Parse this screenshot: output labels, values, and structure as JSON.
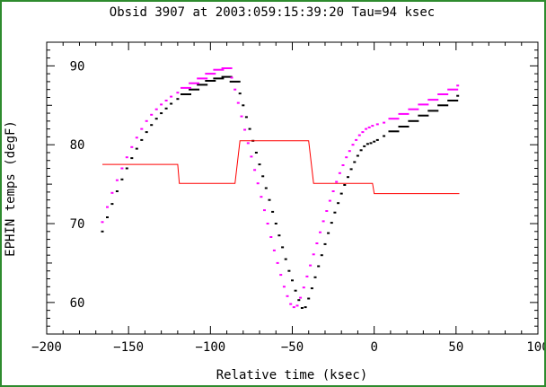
{
  "chart_data": {
    "type": "scatter",
    "title": "Obsid 3907 at 2003:059:15:39:20   Tau=94 ksec",
    "xlabel": "Relative time (ksec)",
    "ylabel": "EPHIN temps (degF)",
    "xlim": [
      -200,
      100
    ],
    "ylim": [
      56,
      93
    ],
    "xticks": [
      -200,
      -150,
      -100,
      -50,
      0,
      50,
      100
    ],
    "yticks": [
      60,
      70,
      80,
      90
    ],
    "xtick_labels": [
      "−200",
      "−150",
      "−100",
      "−50",
      "0",
      "50",
      "100"
    ],
    "ytick_labels": [
      "60",
      "70",
      "80",
      "90"
    ],
    "grid": false,
    "colors": {
      "frame": "#2e8b2e",
      "black_series": "#000000",
      "magenta_series": "#ff00ff",
      "red_series": "#ff0000"
    },
    "series": [
      {
        "color": "#000000",
        "style": "markers",
        "x": [
          -166,
          -163,
          -160,
          -157,
          -154,
          -151,
          -148,
          -145,
          -142,
          -139,
          -136,
          -133,
          -130,
          -127,
          -124,
          -120,
          -115,
          -110,
          -105,
          -100,
          -95,
          -90,
          -85,
          -82,
          -80,
          -78,
          -76,
          -74,
          -72,
          -70,
          -68,
          -66,
          -64,
          -62,
          -60,
          -58,
          -56,
          -54,
          -52,
          -50,
          -48,
          -46,
          -44,
          -42,
          -40,
          -38,
          -36,
          -34,
          -32,
          -30,
          -28,
          -26,
          -24,
          -22,
          -20,
          -18,
          -16,
          -14,
          -12,
          -10,
          -8,
          -6,
          -4,
          -2,
          0,
          2,
          6,
          12,
          18,
          24,
          30,
          36,
          42,
          48,
          51
        ],
        "y": [
          69,
          70.8,
          72.5,
          74.1,
          75.6,
          77,
          78.3,
          79.5,
          80.6,
          81.6,
          82.5,
          83.3,
          84,
          84.6,
          85.2,
          85.8,
          86.4,
          87,
          87.6,
          88.1,
          88.4,
          88.6,
          88,
          86.5,
          85,
          83.5,
          82,
          80.5,
          79,
          77.5,
          76,
          74.5,
          73,
          71.5,
          70,
          68.5,
          67,
          65.5,
          64,
          62.8,
          61.5,
          60.3,
          59.3,
          59.4,
          60.5,
          61.8,
          63.2,
          64.6,
          66,
          67.4,
          68.8,
          70.1,
          71.4,
          72.6,
          73.8,
          74.9,
          75.9,
          76.9,
          77.8,
          78.6,
          79.3,
          79.8,
          80.1,
          80.2,
          80.4,
          80.6,
          81.1,
          81.7,
          82.3,
          83,
          83.7,
          84.3,
          85,
          85.6,
          86.2
        ]
      },
      {
        "color": "#ff00ff",
        "style": "markers",
        "x": [
          -166,
          -163,
          -160,
          -157,
          -154,
          -151,
          -148,
          -145,
          -142,
          -139,
          -136,
          -133,
          -130,
          -127,
          -124,
          -120,
          -115,
          -110,
          -105,
          -100,
          -95,
          -90,
          -87,
          -85,
          -83,
          -81,
          -79,
          -77,
          -75,
          -73,
          -71,
          -69,
          -67,
          -65,
          -63,
          -61,
          -59,
          -57,
          -55,
          -53,
          -51,
          -49,
          -47,
          -45,
          -43,
          -41,
          -39,
          -37,
          -35,
          -33,
          -31,
          -29,
          -27,
          -25,
          -23,
          -21,
          -19,
          -17,
          -15,
          -13,
          -11,
          -9,
          -7,
          -5,
          -3,
          -1,
          2,
          6,
          12,
          18,
          24,
          30,
          36,
          42,
          48,
          51
        ],
        "y": [
          70.2,
          72.1,
          73.9,
          75.5,
          77,
          78.4,
          79.7,
          80.9,
          82,
          83,
          83.8,
          84.5,
          85.1,
          85.6,
          86.1,
          86.6,
          87.2,
          87.8,
          88.4,
          89,
          89.5,
          89.7,
          88.5,
          87,
          85.3,
          83.6,
          81.9,
          80.2,
          78.5,
          76.8,
          75.1,
          73.4,
          71.7,
          70,
          68.3,
          66.6,
          65,
          63.5,
          62,
          60.8,
          59.8,
          59.4,
          59.6,
          60.6,
          61.9,
          63.3,
          64.7,
          66.1,
          67.5,
          68.9,
          70.3,
          71.6,
          72.9,
          74.1,
          75.3,
          76.4,
          77.4,
          78.4,
          79.2,
          80,
          80.6,
          81.2,
          81.6,
          82,
          82.2,
          82.4,
          82.6,
          82.8,
          83.3,
          83.9,
          84.5,
          85.1,
          85.7,
          86.4,
          87,
          87.5
        ]
      },
      {
        "color": "#ff0000",
        "style": "line",
        "x": [
          -166,
          -120,
          -119,
          -85,
          -82,
          -40,
          -37,
          -1,
          0,
          52
        ],
        "y": [
          77.5,
          77.5,
          75.1,
          75.1,
          80.5,
          80.5,
          75.1,
          75.1,
          73.8,
          73.8
        ]
      }
    ]
  }
}
